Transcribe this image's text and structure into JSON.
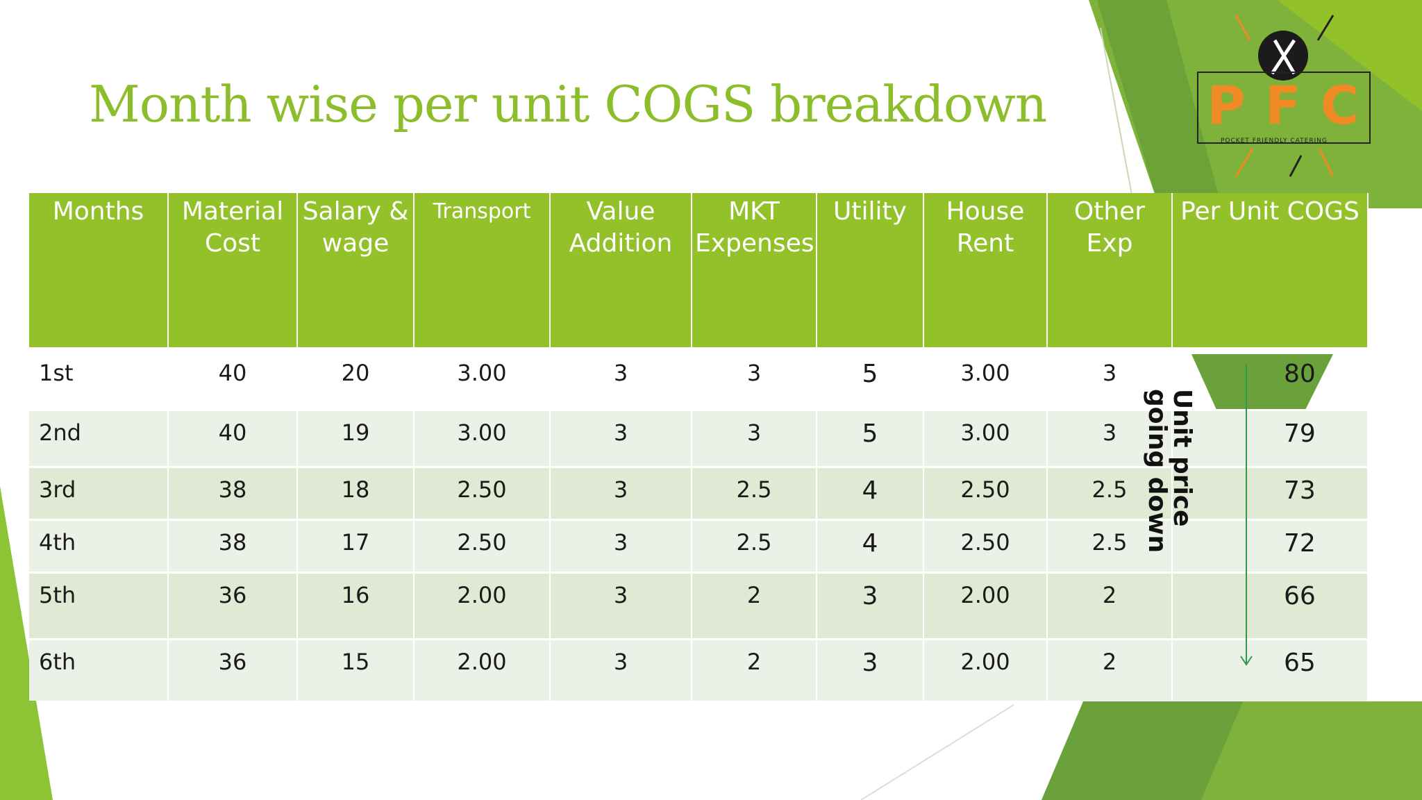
{
  "slide": {
    "title": "Month wise per unit COGS breakdown",
    "annotation": "Unit price going down"
  },
  "logo": {
    "letters": "PFC",
    "tagline": "POCKET FRIENDLY CATERING"
  },
  "table": {
    "headers": [
      "Months",
      "Material Cost",
      "Salary & wage",
      "Transport",
      "Value Addition",
      "MKT Expenses",
      "Utility",
      "House Rent",
      "Other Exp",
      "Per Unit COGS"
    ],
    "rows": [
      [
        "1st",
        "40",
        "20",
        "3.00",
        "3",
        "3",
        "5",
        "3.00",
        "3",
        "80"
      ],
      [
        "2nd",
        "40",
        "19",
        "3.00",
        "3",
        "3",
        "5",
        "3.00",
        "3",
        "79"
      ],
      [
        "3rd",
        "38",
        "18",
        "2.50",
        "3",
        "2.5",
        "4",
        "2.50",
        "2.5",
        "73"
      ],
      [
        "4th",
        "38",
        "17",
        "2.50",
        "3",
        "2.5",
        "4",
        "2.50",
        "2.5",
        "72"
      ],
      [
        "5th",
        "36",
        "16",
        "2.00",
        "3",
        "2",
        "3",
        "2.00",
        "2",
        "66"
      ],
      [
        "6th",
        "36",
        "15",
        "2.00",
        "3",
        "2",
        "3",
        "2.00",
        "2",
        "65"
      ]
    ]
  },
  "colors": {
    "accent_green": "#92c12a",
    "title_green": "#8cbd2a",
    "logo_orange": "#f08a24"
  }
}
